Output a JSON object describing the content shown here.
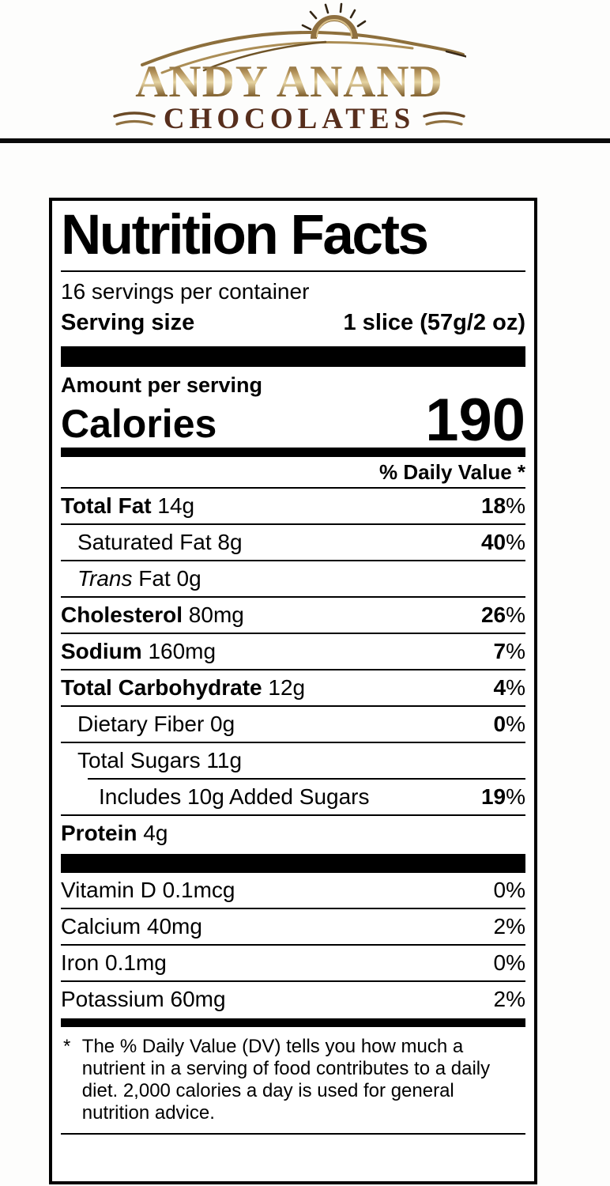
{
  "brand": {
    "name": "ANDY ANAND",
    "tagline": "CHOCOLATES",
    "colors": {
      "gold": "#8f7140",
      "gold_light": "#e6d4a2",
      "gold_dark": "#5e4520",
      "brown": "#572e1c"
    }
  },
  "label": {
    "title": "Nutrition Facts",
    "servings_per_container": "16 servings per container",
    "serving_size_label": "Serving size",
    "serving_size_value": "1 slice (57g/2 oz)",
    "amount_per_serving": "Amount per serving",
    "calories_label": "Calories",
    "calories_value": "190",
    "daily_value_header": "% Daily Value *",
    "nutrients": [
      {
        "name": "Total Fat",
        "bold": true,
        "amount": "14g",
        "dv": "18%",
        "indent": 0
      },
      {
        "name": "Saturated Fat",
        "bold": false,
        "amount": "8g",
        "dv": "40%",
        "indent": 1
      },
      {
        "name_italic": "Trans",
        "name": "Fat",
        "bold": false,
        "amount": "0g",
        "dv": "",
        "indent": 1
      },
      {
        "name": "Cholesterol",
        "bold": true,
        "amount": "80mg",
        "dv": "26%",
        "indent": 0
      },
      {
        "name": "Sodium",
        "bold": true,
        "amount": "160mg",
        "dv": "7%",
        "indent": 0
      },
      {
        "name": "Total Carbohydrate",
        "bold": true,
        "amount": "12g",
        "dv": "4%",
        "indent": 0
      },
      {
        "name": "Dietary Fiber",
        "bold": false,
        "amount": "0g",
        "dv": "0%",
        "indent": 1
      },
      {
        "name": "Total Sugars",
        "bold": false,
        "amount": "11g",
        "dv": "",
        "indent": 1,
        "divider_after": "indented"
      },
      {
        "name": "Includes 10g Added Sugars",
        "bold": false,
        "amount": "",
        "dv": "19%",
        "indent": 2
      },
      {
        "name": "Protein",
        "bold": true,
        "amount": "4g",
        "dv": "",
        "indent": 0,
        "divider_after": "none"
      }
    ],
    "micronutrients": [
      {
        "name": "Vitamin D 0.1mcg",
        "dv": "0%"
      },
      {
        "name": "Calcium 40mg",
        "dv": "2%"
      },
      {
        "name": "Iron 0.1mg",
        "dv": "0%"
      },
      {
        "name": "Potassium 60mg",
        "dv": "2%"
      }
    ],
    "footnote_marker": "*",
    "footnote_lines": [
      "The % Daily Value (DV) tells you how much a",
      "nutrient in a serving of food contributes to a daily",
      "diet. 2,000 calories a day is used for general",
      "nutrition advice."
    ]
  }
}
